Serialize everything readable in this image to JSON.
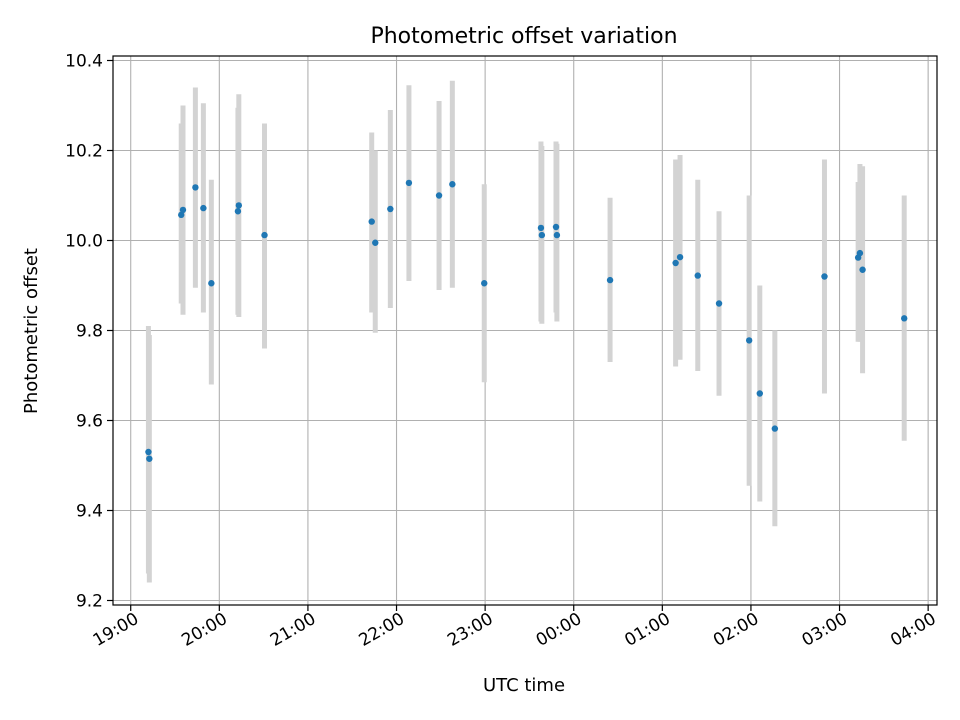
{
  "chart_data": {
    "type": "scatter",
    "title": "Photometric offset variation",
    "xlabel": "UTC time",
    "ylabel": "Photometric offset",
    "x_unit": "hours since 19:00 UTC",
    "xlim": [
      -0.2,
      9.1
    ],
    "ylim": [
      9.19,
      10.41
    ],
    "grid": true,
    "x_tick_values": [
      0,
      1,
      2,
      3,
      4,
      5,
      6,
      7,
      8,
      9
    ],
    "x_ticks": [
      "19:00",
      "20:00",
      "21:00",
      "22:00",
      "23:00",
      "00:00",
      "01:00",
      "02:00",
      "03:00",
      "04:00"
    ],
    "y_tick_values": [
      9.2,
      9.4,
      9.6,
      9.8,
      10.0,
      10.2,
      10.4
    ],
    "y_ticks": [
      "9.2",
      "9.4",
      "9.6",
      "9.8",
      "10.0",
      "10.2",
      "10.4"
    ],
    "colors": {
      "point": "#1f77b4",
      "errorbar": "#d3d3d3",
      "grid": "#b0b0b0"
    },
    "points": [
      {
        "x": 0.2,
        "y": 9.53,
        "lo": 9.26,
        "hi": 9.81
      },
      {
        "x": 0.21,
        "y": 9.515,
        "lo": 9.24,
        "hi": 9.79
      },
      {
        "x": 0.57,
        "y": 10.057,
        "lo": 9.86,
        "hi": 10.26
      },
      {
        "x": 0.59,
        "y": 10.068,
        "lo": 9.835,
        "hi": 10.3
      },
      {
        "x": 0.73,
        "y": 10.118,
        "lo": 9.895,
        "hi": 10.34
      },
      {
        "x": 0.82,
        "y": 10.072,
        "lo": 9.84,
        "hi": 10.305
      },
      {
        "x": 0.91,
        "y": 9.905,
        "lo": 9.68,
        "hi": 10.135
      },
      {
        "x": 1.21,
        "y": 10.065,
        "lo": 9.835,
        "hi": 10.295
      },
      {
        "x": 1.22,
        "y": 10.078,
        "lo": 9.83,
        "hi": 10.325
      },
      {
        "x": 1.51,
        "y": 10.012,
        "lo": 9.76,
        "hi": 10.26
      },
      {
        "x": 2.72,
        "y": 10.042,
        "lo": 9.84,
        "hi": 10.24
      },
      {
        "x": 2.76,
        "y": 9.995,
        "lo": 9.795,
        "hi": 10.2
      },
      {
        "x": 2.93,
        "y": 10.07,
        "lo": 9.85,
        "hi": 10.29
      },
      {
        "x": 3.14,
        "y": 10.128,
        "lo": 9.91,
        "hi": 10.345
      },
      {
        "x": 3.48,
        "y": 10.1,
        "lo": 9.89,
        "hi": 10.31
      },
      {
        "x": 3.63,
        "y": 10.125,
        "lo": 9.895,
        "hi": 10.355
      },
      {
        "x": 3.99,
        "y": 9.905,
        "lo": 9.685,
        "hi": 10.125
      },
      {
        "x": 4.63,
        "y": 10.028,
        "lo": 9.82,
        "hi": 10.22
      },
      {
        "x": 4.64,
        "y": 10.012,
        "lo": 9.815,
        "hi": 10.21
      },
      {
        "x": 4.8,
        "y": 10.03,
        "lo": 9.84,
        "hi": 10.22
      },
      {
        "x": 4.81,
        "y": 10.012,
        "lo": 9.82,
        "hi": 10.215
      },
      {
        "x": 5.41,
        "y": 9.912,
        "lo": 9.73,
        "hi": 10.095
      },
      {
        "x": 6.15,
        "y": 9.95,
        "lo": 9.72,
        "hi": 10.18
      },
      {
        "x": 6.2,
        "y": 9.963,
        "lo": 9.735,
        "hi": 10.19
      },
      {
        "x": 6.4,
        "y": 9.922,
        "lo": 9.71,
        "hi": 10.135
      },
      {
        "x": 6.64,
        "y": 9.86,
        "lo": 9.655,
        "hi": 10.065
      },
      {
        "x": 6.98,
        "y": 9.778,
        "lo": 9.455,
        "hi": 10.1
      },
      {
        "x": 7.1,
        "y": 9.66,
        "lo": 9.42,
        "hi": 9.9
      },
      {
        "x": 7.27,
        "y": 9.582,
        "lo": 9.365,
        "hi": 9.8
      },
      {
        "x": 7.83,
        "y": 9.92,
        "lo": 9.66,
        "hi": 10.18
      },
      {
        "x": 8.21,
        "y": 9.962,
        "lo": 9.775,
        "hi": 10.13
      },
      {
        "x": 8.23,
        "y": 9.972,
        "lo": 9.775,
        "hi": 10.17
      },
      {
        "x": 8.26,
        "y": 9.935,
        "lo": 9.705,
        "hi": 10.165
      },
      {
        "x": 8.73,
        "y": 9.827,
        "lo": 9.555,
        "hi": 10.1
      }
    ]
  }
}
